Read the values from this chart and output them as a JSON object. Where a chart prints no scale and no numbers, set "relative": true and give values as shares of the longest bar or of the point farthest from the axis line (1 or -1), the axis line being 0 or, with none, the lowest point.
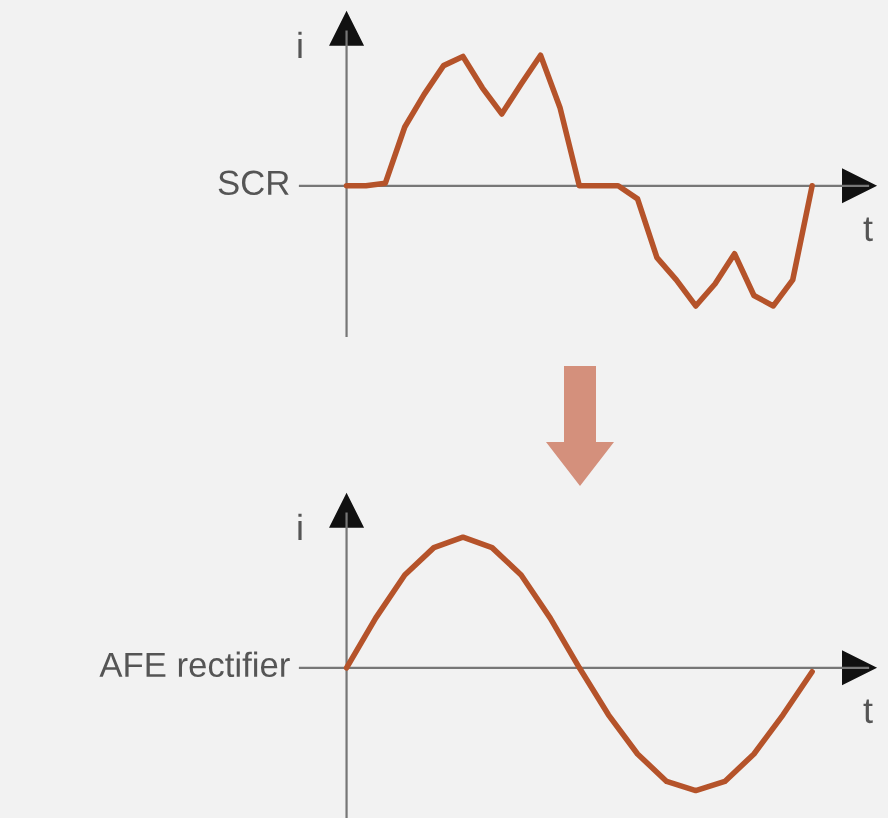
{
  "chart_data": [
    {
      "type": "line",
      "relative": true,
      "xlabel": "t",
      "ylabel": "i",
      "categories": [
        null,
        null,
        null,
        null,
        null,
        null,
        null,
        null,
        null,
        null,
        null,
        null,
        null,
        null,
        null,
        null,
        null,
        null,
        null,
        null,
        null,
        null,
        null,
        null,
        null
      ],
      "series": [
        {
          "name": "SCR",
          "color": "#b5532a",
          "values": [
            0,
            0,
            0.02,
            0.45,
            0.7,
            0.92,
            0.99,
            0.75,
            0.55,
            0.78,
            1,
            0.6,
            0,
            0,
            0,
            -0.1,
            -0.55,
            -0.72,
            -0.92,
            -0.75,
            -0.52,
            -0.84,
            -0.92,
            -0.72,
            0
          ]
        }
      ]
    },
    {
      "type": "line",
      "relative": true,
      "xlabel": "t",
      "ylabel": "i",
      "categories": [
        null,
        null,
        null,
        null,
        null,
        null,
        null,
        null,
        null,
        null,
        null,
        null,
        null,
        null,
        null,
        null,
        null
      ],
      "series": [
        {
          "name": "AFE rectifier",
          "color": "#b5532a",
          "values": [
            0,
            0.38,
            0.71,
            0.92,
            1,
            0.92,
            0.71,
            0.38,
            0,
            -0.36,
            -0.66,
            -0.87,
            -0.94,
            -0.87,
            -0.66,
            -0.36,
            -0.03
          ]
        }
      ]
    }
  ]
}
